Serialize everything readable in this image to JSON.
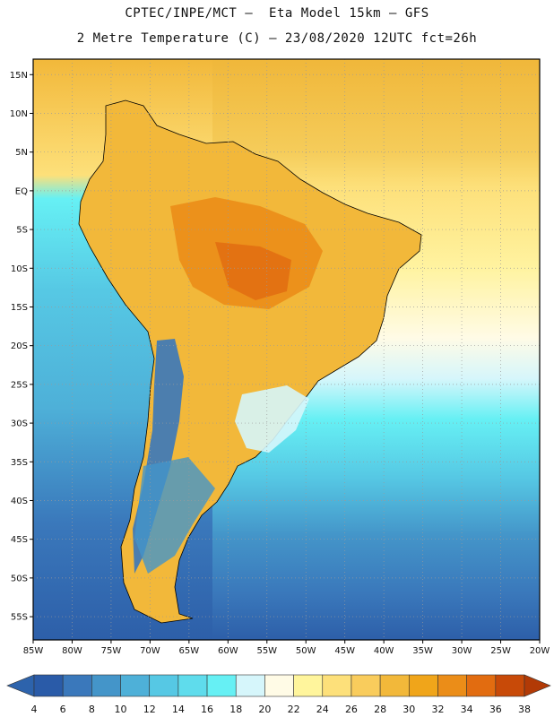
{
  "header": {
    "line1": "CPTEC/INPE/MCT –  Eta Model 15km – GFS",
    "line2": "2 Metre Temperature (C) – 23/08/2020 12UTC fct=26h"
  },
  "map": {
    "lon_range": [
      -85,
      -20
    ],
    "lat_range": [
      -58,
      17
    ],
    "lat_ticks": [
      {
        "value": 15,
        "label": "15N"
      },
      {
        "value": 10,
        "label": "10N"
      },
      {
        "value": 5,
        "label": "5N"
      },
      {
        "value": 0,
        "label": "EQ"
      },
      {
        "value": -5,
        "label": "5S"
      },
      {
        "value": -10,
        "label": "10S"
      },
      {
        "value": -15,
        "label": "15S"
      },
      {
        "value": -20,
        "label": "20S"
      },
      {
        "value": -25,
        "label": "25S"
      },
      {
        "value": -30,
        "label": "30S"
      },
      {
        "value": -35,
        "label": "35S"
      },
      {
        "value": -40,
        "label": "40S"
      },
      {
        "value": -45,
        "label": "45S"
      },
      {
        "value": -50,
        "label": "50S"
      },
      {
        "value": -55,
        "label": "55S"
      }
    ],
    "lon_ticks": [
      {
        "value": -85,
        "label": "85W"
      },
      {
        "value": -80,
        "label": "80W"
      },
      {
        "value": -75,
        "label": "75W"
      },
      {
        "value": -70,
        "label": "70W"
      },
      {
        "value": -65,
        "label": "65W"
      },
      {
        "value": -60,
        "label": "60W"
      },
      {
        "value": -55,
        "label": "55W"
      },
      {
        "value": -50,
        "label": "50W"
      },
      {
        "value": -45,
        "label": "45W"
      },
      {
        "value": -40,
        "label": "40W"
      },
      {
        "value": -35,
        "label": "35W"
      },
      {
        "value": -30,
        "label": "30W"
      },
      {
        "value": -25,
        "label": "25W"
      },
      {
        "value": -20,
        "label": "20W"
      }
    ]
  },
  "colorbar": {
    "labels": [
      "4",
      "6",
      "8",
      "10",
      "12",
      "14",
      "16",
      "18",
      "20",
      "22",
      "24",
      "26",
      "28",
      "30",
      "32",
      "34",
      "36",
      "38"
    ],
    "colors": [
      "#2a5ba8",
      "#3a78bb",
      "#4495c9",
      "#4eb0d8",
      "#56c8e4",
      "#5fdcec",
      "#66f0f4",
      "#d6f6fb",
      "#fffbe6",
      "#fff59c",
      "#fde07a",
      "#f9cc5c",
      "#f2b83a",
      "#f0a51a",
      "#eb8d18",
      "#e26c10",
      "#c84a08"
    ],
    "under_color": "#2d63ac",
    "over_color": "#b23a06"
  },
  "legend_colors": {
    "land_outline": "#000000",
    "grid": "#9a9a9a"
  }
}
